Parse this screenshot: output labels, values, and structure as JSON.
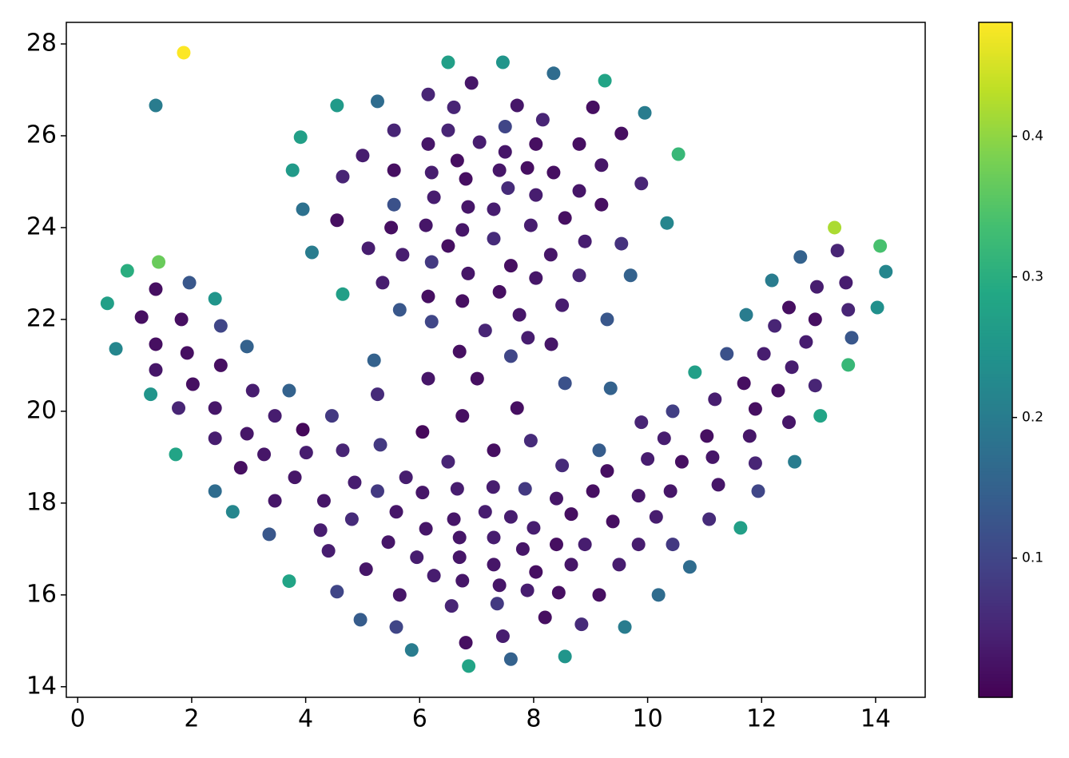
{
  "chart_data": {
    "type": "scatter",
    "x": [
      1.86,
      1.37,
      1.42,
      0.87,
      0.52,
      1.37,
      1.96,
      2.41,
      1.12,
      1.82,
      2.51,
      0.67,
      1.37,
      1.92,
      2.97,
      1.37,
      2.51,
      2.02,
      1.28,
      3.07,
      3.71,
      1.77,
      2.41,
      3.46,
      4.46,
      3.95,
      2.41,
      2.97,
      1.72,
      3.27,
      4.01,
      4.65,
      5.31,
      2.86,
      3.81,
      2.41,
      3.46,
      2.72,
      4.32,
      4.86,
      5.26,
      5.76,
      3.36,
      4.26,
      4.81,
      3.71,
      4.4,
      5.06,
      5.45,
      5.59,
      6.05,
      6.11,
      4.55,
      4.96,
      5.65,
      5.59,
      5.95,
      6.25,
      5.86,
      6.56,
      6.86,
      6.81,
      6.75,
      6.7,
      6.7,
      6.6,
      6.66,
      6.5,
      6.05,
      6.75,
      6.15,
      7.01,
      6.7,
      7.29,
      7.15,
      7.3,
      7.3,
      7.4,
      7.36,
      7.46,
      7.6,
      7.6,
      7.81,
      8.0,
      7.85,
      7.3,
      7.95,
      7.71,
      7.6,
      7.9,
      8.31,
      8.55,
      8.5,
      8.4,
      8.66,
      8.04,
      7.89,
      8.4,
      8.9,
      8.66,
      8.44,
      8.2,
      8.55,
      8.84,
      9.15,
      9.5,
      9.39,
      9.04,
      9.29,
      9.15,
      9.35,
      9.29,
      9.84,
      9.84,
      9.6,
      10.19,
      10.15,
      10.44,
      10.4,
      10.0,
      10.29,
      9.89,
      10.44,
      10.6,
      10.74,
      11.08,
      11.24,
      11.14,
      11.04,
      11.18,
      10.83,
      11.39,
      11.69,
      11.89,
      11.79,
      11.89,
      11.94,
      11.63,
      12.58,
      12.48,
      12.29,
      12.53,
      12.04,
      12.78,
      12.23,
      12.48,
      11.73,
      12.18,
      12.68,
      12.97,
      12.94,
      12.94,
      13.03,
      13.28,
      13.33,
      13.48,
      13.52,
      13.58,
      13.52,
      14.08,
      14.18,
      14.03,
      6.5,
      7.46,
      8.35,
      9.25,
      6.91,
      6.15,
      5.26,
      4.55,
      6.6,
      7.71,
      9.04,
      9.95,
      8.16,
      7.5,
      6.5,
      5.55,
      9.54,
      3.91,
      6.15,
      7.05,
      8.04,
      8.8,
      10.54,
      5.0,
      7.5,
      6.66,
      9.19,
      3.77,
      5.55,
      6.21,
      7.4,
      7.89,
      8.35,
      4.65,
      6.81,
      9.89,
      7.55,
      8.8,
      6.25,
      8.04,
      5.55,
      6.85,
      7.3,
      9.19,
      3.95,
      4.55,
      8.55,
      10.34,
      6.11,
      7.95,
      5.5,
      6.75,
      7.3,
      8.9,
      9.54,
      6.5,
      5.1,
      5.7,
      8.3,
      4.11,
      6.21,
      7.6,
      6.85,
      8.8,
      9.7,
      8.04,
      5.35,
      7.4,
      4.65,
      6.15,
      6.75,
      8.5,
      5.65,
      7.75,
      6.21,
      7.15,
      5.2,
      5.26
    ],
    "values": [
      27.81,
      26.66,
      23.25,
      23.06,
      22.35,
      22.66,
      22.8,
      22.45,
      22.05,
      22.0,
      21.86,
      21.36,
      21.46,
      21.27,
      21.41,
      20.9,
      21.0,
      20.59,
      20.37,
      20.45,
      20.45,
      20.07,
      20.07,
      19.9,
      19.9,
      19.6,
      19.41,
      19.51,
      19.06,
      19.06,
      19.1,
      19.15,
      19.27,
      18.77,
      18.56,
      18.26,
      18.05,
      17.81,
      18.05,
      18.45,
      18.26,
      18.56,
      17.32,
      17.41,
      17.65,
      16.3,
      16.96,
      16.56,
      17.15,
      17.81,
      18.23,
      17.44,
      16.07,
      15.46,
      16.0,
      15.3,
      16.82,
      16.42,
      14.8,
      15.76,
      14.45,
      14.96,
      16.31,
      16.82,
      17.25,
      17.65,
      18.31,
      18.9,
      19.55,
      19.9,
      20.71,
      20.71,
      21.3,
      18.35,
      17.81,
      17.25,
      16.66,
      16.21,
      15.81,
      15.1,
      14.6,
      17.7,
      17.0,
      17.46,
      18.31,
      19.15,
      19.36,
      20.07,
      21.2,
      21.6,
      21.46,
      20.61,
      18.82,
      18.1,
      17.76,
      16.5,
      16.1,
      17.1,
      17.1,
      16.66,
      16.05,
      15.51,
      14.66,
      15.36,
      16.0,
      16.66,
      17.6,
      18.26,
      18.7,
      19.15,
      20.5,
      22.0,
      18.16,
      17.1,
      15.3,
      16.0,
      17.7,
      17.1,
      18.26,
      18.96,
      19.41,
      19.76,
      20.0,
      18.9,
      16.61,
      17.65,
      18.4,
      19.0,
      19.46,
      20.26,
      20.85,
      21.25,
      20.61,
      20.05,
      19.46,
      18.87,
      18.26,
      17.46,
      18.9,
      19.76,
      20.45,
      20.96,
      21.25,
      21.51,
      21.86,
      22.26,
      22.1,
      22.85,
      23.36,
      22.71,
      22.0,
      20.56,
      19.9,
      24.0,
      23.5,
      22.8,
      22.21,
      21.6,
      21.01,
      23.6,
      23.04,
      22.26,
      27.6,
      27.6,
      27.36,
      27.2,
      27.15,
      26.9,
      26.75,
      26.66,
      26.62,
      26.66,
      26.62,
      26.5,
      26.35,
      26.2,
      26.12,
      26.12,
      26.05,
      25.97,
      25.82,
      25.86,
      25.82,
      25.82,
      25.6,
      25.57,
      25.65,
      25.46,
      25.36,
      25.25,
      25.25,
      25.2,
      25.25,
      25.3,
      25.2,
      25.11,
      25.06,
      24.96,
      24.86,
      24.8,
      24.66,
      24.71,
      24.5,
      24.45,
      24.4,
      24.5,
      24.4,
      24.16,
      24.21,
      24.1,
      24.05,
      24.05,
      24.0,
      23.95,
      23.76,
      23.7,
      23.65,
      23.6,
      23.55,
      23.41,
      23.41,
      23.46,
      23.25,
      23.17,
      23.0,
      22.96,
      22.96,
      22.9,
      22.8,
      22.6,
      22.55,
      22.5,
      22.4,
      22.31,
      22.21,
      22.1,
      21.95,
      21.76,
      21.11,
      20.37
    ],
    "color_values": [
      0.48,
      0.2,
      0.37,
      0.3,
      0.27,
      0.02,
      0.13,
      0.25,
      0.02,
      0.02,
      0.1,
      0.22,
      0.02,
      0.02,
      0.15,
      0.03,
      0.02,
      0.02,
      0.25,
      0.04,
      0.15,
      0.05,
      0.03,
      0.04,
      0.08,
      0.01,
      0.04,
      0.03,
      0.28,
      0.03,
      0.04,
      0.05,
      0.08,
      0.02,
      0.03,
      0.17,
      0.03,
      0.22,
      0.03,
      0.04,
      0.08,
      0.04,
      0.13,
      0.04,
      0.06,
      0.28,
      0.04,
      0.03,
      0.03,
      0.03,
      0.03,
      0.03,
      0.1,
      0.14,
      0.03,
      0.1,
      0.04,
      0.04,
      0.2,
      0.05,
      0.28,
      0.02,
      0.03,
      0.03,
      0.03,
      0.03,
      0.04,
      0.05,
      0.01,
      0.02,
      0.03,
      0.02,
      0.02,
      0.04,
      0.04,
      0.04,
      0.03,
      0.03,
      0.08,
      0.04,
      0.15,
      0.04,
      0.03,
      0.04,
      0.08,
      0.02,
      0.06,
      0.02,
      0.1,
      0.04,
      0.03,
      0.12,
      0.06,
      0.03,
      0.02,
      0.02,
      0.04,
      0.02,
      0.04,
      0.03,
      0.02,
      0.02,
      0.25,
      0.06,
      0.02,
      0.04,
      0.02,
      0.02,
      0.02,
      0.14,
      0.15,
      0.13,
      0.03,
      0.04,
      0.2,
      0.17,
      0.04,
      0.08,
      0.03,
      0.04,
      0.04,
      0.05,
      0.09,
      0.02,
      0.17,
      0.06,
      0.03,
      0.03,
      0.02,
      0.04,
      0.27,
      0.12,
      0.02,
      0.02,
      0.03,
      0.05,
      0.1,
      0.27,
      0.2,
      0.03,
      0.02,
      0.04,
      0.04,
      0.04,
      0.05,
      0.02,
      0.2,
      0.2,
      0.15,
      0.04,
      0.02,
      0.05,
      0.28,
      0.42,
      0.05,
      0.04,
      0.05,
      0.13,
      0.32,
      0.34,
      0.22,
      0.24,
      0.27,
      0.25,
      0.17,
      0.28,
      0.03,
      0.05,
      0.17,
      0.26,
      0.05,
      0.03,
      0.02,
      0.2,
      0.05,
      0.1,
      0.05,
      0.05,
      0.02,
      0.27,
      0.03,
      0.04,
      0.02,
      0.02,
      0.32,
      0.04,
      0.03,
      0.02,
      0.03,
      0.26,
      0.02,
      0.04,
      0.03,
      0.02,
      0.02,
      0.05,
      0.02,
      0.05,
      0.06,
      0.03,
      0.04,
      0.04,
      0.12,
      0.03,
      0.04,
      0.02,
      0.18,
      0.02,
      0.02,
      0.22,
      0.03,
      0.04,
      0.02,
      0.03,
      0.06,
      0.04,
      0.07,
      0.02,
      0.04,
      0.04,
      0.03,
      0.2,
      0.08,
      0.02,
      0.03,
      0.05,
      0.15,
      0.03,
      0.04,
      0.02,
      0.27,
      0.02,
      0.02,
      0.04,
      0.13,
      0.03,
      0.1,
      0.05,
      0.15,
      0.06
    ],
    "colormap": "viridis",
    "clim": [
      0.001,
      0.481
    ],
    "cticks": [
      0.1,
      0.2,
      0.3,
      0.4
    ],
    "xlim": [
      -0.2,
      14.87
    ],
    "ylim": [
      13.77,
      28.47
    ],
    "xticks": [
      0,
      2,
      4,
      6,
      8,
      10,
      12,
      14
    ],
    "yticks": [
      14,
      16,
      18,
      20,
      22,
      24,
      26,
      28
    ]
  }
}
